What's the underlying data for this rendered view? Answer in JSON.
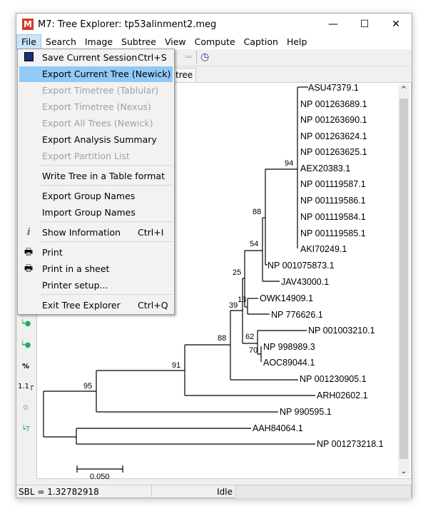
{
  "window": {
    "title": "M7: Tree Explorer: tp53alinment2.meg",
    "app_icon": "M",
    "controls": [
      "minimize",
      "maximize",
      "close"
    ]
  },
  "menubar": [
    "File",
    "Search",
    "Image",
    "Subtree",
    "View",
    "Compute",
    "Caption",
    "Help"
  ],
  "tab": {
    "label": "tree"
  },
  "file_menu": [
    {
      "label": "Save Current Session",
      "shortcut": "Ctrl+S",
      "icon": "floppy-disk-icon",
      "enabled": true
    },
    {
      "label": "Export Current Tree (Newick)",
      "enabled": true,
      "highlighted": true
    },
    {
      "label": "Export Timetree (Tablular)",
      "enabled": false
    },
    {
      "label": "Export Timetree (Nexus)",
      "enabled": false
    },
    {
      "label": "Export All Trees (Newick)",
      "enabled": false
    },
    {
      "label": "Export Analysis Summary",
      "enabled": true
    },
    {
      "label": "Export Partition List",
      "enabled": false
    },
    {
      "label": "Write Tree in a Table format",
      "enabled": true
    },
    {
      "label": "Export Group Names",
      "enabled": true
    },
    {
      "label": "Import Group Names",
      "enabled": true
    },
    {
      "label": "Show Information",
      "shortcut": "Ctrl+I",
      "icon": "info-icon",
      "enabled": true
    },
    {
      "label": "Print",
      "icon": "printer-icon",
      "enabled": true
    },
    {
      "label": "Print in a sheet",
      "icon": "printer-icon",
      "enabled": true
    },
    {
      "label": "Printer setup...",
      "enabled": true
    },
    {
      "label": "Exit Tree Explorer",
      "shortcut": "Ctrl+Q",
      "enabled": true
    }
  ],
  "tree": {
    "leaves": [
      "ASU47379.1",
      "NP 001263689.1",
      "NP 001263690.1",
      "NP 001263624.1",
      "NP 001263625.1",
      "AEX20383.1",
      "NP 001119587.1",
      "NP 001119586.1",
      "NP 001119584.1",
      "NP 001119585.1",
      "AKI70249.1",
      "NP 001075873.1",
      "JAV43000.1",
      "OWK14909.1",
      "NP 776626.1",
      "NP 001003210.1",
      "NP 998989.3",
      "AOC89044.1",
      "NP 001230905.1",
      "ARH02602.1",
      "NP 990595.1",
      "AAH84064.1",
      "NP 001273218.1"
    ],
    "bootstrap": [
      "94",
      "88",
      "54",
      "25",
      "13",
      "39",
      "62",
      "70",
      "88",
      "91",
      "95"
    ],
    "scale_bar": "0.050"
  },
  "status": {
    "sbl": "SBL = 1.32782918",
    "state": "Idle"
  }
}
